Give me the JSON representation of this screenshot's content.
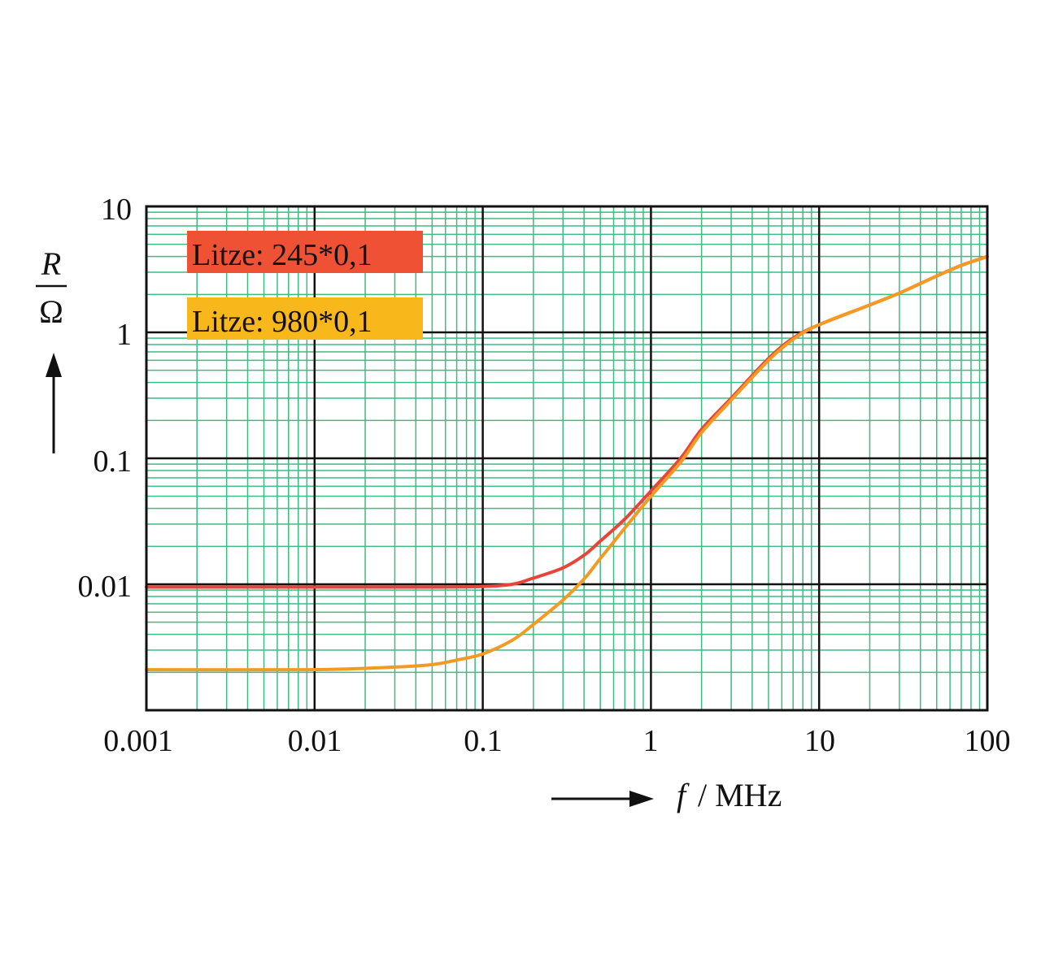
{
  "chart_data": {
    "type": "line",
    "x_scale": "log",
    "y_scale": "log",
    "xlim": [
      0.001,
      100
    ],
    "ylim": [
      0.001,
      10
    ],
    "x_ticks": [
      "0.001",
      "0.01",
      "0.1",
      "1",
      "10",
      "100"
    ],
    "y_ticks": [
      "10",
      "1",
      "0.1",
      "0.01"
    ],
    "ylabel_symbol": "R",
    "ylabel_unit": "Ω",
    "xlabel_symbol": "f",
    "xlabel_unit": "/ MHz",
    "grid": true,
    "grid_color": "#3dbb82",
    "major_grid_color": "#111111",
    "legend_placement": "top-left",
    "series": [
      {
        "name": "Litze: 245*0,1",
        "color": "#e8453a",
        "legend_bg": "#ee5133",
        "points": [
          [
            0.001,
            0.0095
          ],
          [
            0.01,
            0.0095
          ],
          [
            0.05,
            0.0095
          ],
          [
            0.1,
            0.0096
          ],
          [
            0.15,
            0.01
          ],
          [
            0.2,
            0.0112
          ],
          [
            0.3,
            0.0135
          ],
          [
            0.4,
            0.017
          ],
          [
            0.5,
            0.022
          ],
          [
            0.7,
            0.033
          ],
          [
            1,
            0.055
          ],
          [
            1.5,
            0.1
          ],
          [
            2,
            0.17
          ],
          [
            3,
            0.3
          ],
          [
            5,
            0.62
          ],
          [
            7,
            0.9
          ],
          [
            10,
            1.15
          ],
          [
            20,
            1.65
          ],
          [
            30,
            2.05
          ],
          [
            50,
            2.8
          ],
          [
            70,
            3.4
          ],
          [
            100,
            4.0
          ]
        ]
      },
      {
        "name": "Litze: 980*0,1",
        "color": "#f29a22",
        "legend_bg": "#f8b81c",
        "points": [
          [
            0.001,
            0.0021
          ],
          [
            0.01,
            0.0021
          ],
          [
            0.03,
            0.0022
          ],
          [
            0.05,
            0.0023
          ],
          [
            0.07,
            0.0025
          ],
          [
            0.1,
            0.0028
          ],
          [
            0.15,
            0.0036
          ],
          [
            0.2,
            0.0048
          ],
          [
            0.3,
            0.0075
          ],
          [
            0.4,
            0.011
          ],
          [
            0.5,
            0.016
          ],
          [
            0.7,
            0.028
          ],
          [
            1,
            0.05
          ],
          [
            1.5,
            0.093
          ],
          [
            2,
            0.16
          ],
          [
            3,
            0.29
          ],
          [
            5,
            0.6
          ],
          [
            7,
            0.88
          ],
          [
            10,
            1.15
          ],
          [
            20,
            1.65
          ],
          [
            30,
            2.05
          ],
          [
            50,
            2.8
          ],
          [
            70,
            3.4
          ],
          [
            100,
            4.0
          ]
        ]
      }
    ]
  }
}
